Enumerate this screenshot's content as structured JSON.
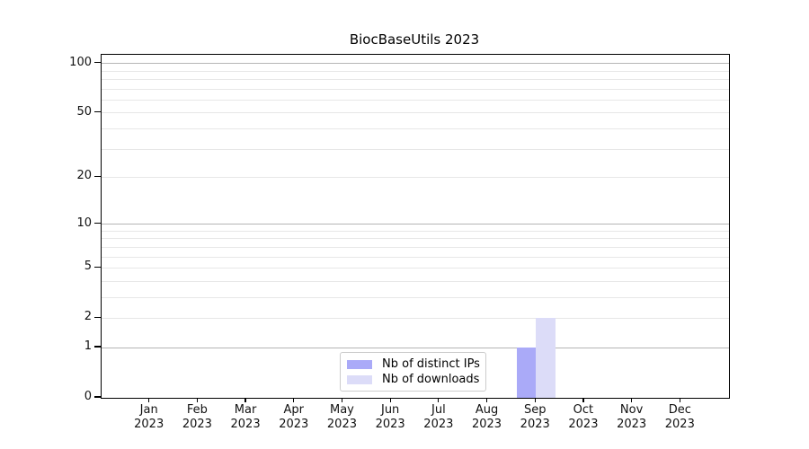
{
  "title": "BiocBaseUtils 2023",
  "chart_data": {
    "type": "bar",
    "title": "BiocBaseUtils 2023",
    "x": {
      "categories": [
        "Jan",
        "Feb",
        "Mar",
        "Apr",
        "May",
        "Jun",
        "Jul",
        "Aug",
        "Sep",
        "Oct",
        "Nov",
        "Dec"
      ],
      "year": "2023",
      "xlim": [
        -1,
        12
      ]
    },
    "y": {
      "scale": "log10(1+value)",
      "ylim": [
        0,
        113
      ],
      "major_ticks": [
        0,
        1,
        2,
        5,
        10,
        20,
        50,
        100
      ],
      "decade_gridlines": [
        1,
        10,
        100
      ],
      "minor_gridlines": [
        2,
        3,
        4,
        5,
        6,
        7,
        8,
        9,
        20,
        30,
        40,
        50,
        60,
        70,
        80,
        90
      ]
    },
    "series": [
      {
        "name": "Nb of distinct IPs",
        "color": "#aaaaf8",
        "values": [
          0,
          0,
          0,
          0,
          0,
          0,
          0,
          0,
          1,
          0,
          0,
          0
        ]
      },
      {
        "name": "Nb of downloads",
        "color": "#dcdcf8",
        "values": [
          0,
          0,
          0,
          0,
          0,
          0,
          0,
          0,
          2,
          0,
          0,
          0
        ]
      }
    ],
    "legend": {
      "position": "bottom-center",
      "entries": [
        "Nb of distinct IPs",
        "Nb of downloads"
      ]
    },
    "grid": true,
    "colors": {
      "spine": "#000000",
      "decade_grid": "#b5b5b5",
      "minor_grid": "#e7e7e7",
      "text": "#111111"
    }
  }
}
